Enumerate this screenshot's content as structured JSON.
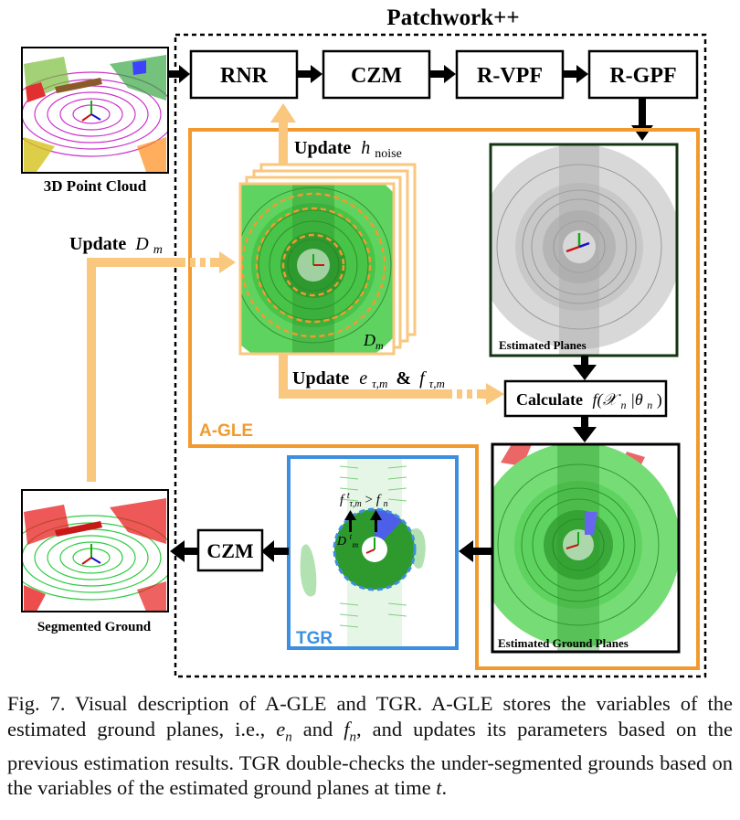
{
  "title": "Patchwork++",
  "blocks": {
    "rnr": "RNR",
    "czm_top": "CZM",
    "rvpf": "R-VPF",
    "rgpf": "R-GPF",
    "czm_bottom": "CZM"
  },
  "labels": {
    "point_cloud": "3D Point Cloud",
    "segmented_ground": "Segmented Ground",
    "update_noise_word": "Update",
    "update_noise_math": "h",
    "update_noise_sub": "noise",
    "update_dm_word": "Update",
    "update_dm_math": "D",
    "update_dm_sub": "m",
    "update_ef_word": "Update",
    "update_ef_e": "e",
    "update_ef_amp": "&",
    "update_ef_f": "f",
    "update_ef_sub": "τ,m",
    "stack_dm": "D",
    "stack_dm_sub": "m",
    "estimated_planes": "Estimated Planes",
    "calculate_word": "Calculate",
    "calculate_math": "f(𝒳",
    "calculate_sub": "n",
    "calculate_rest": "|θ",
    "calculate_sub2": "n",
    "calculate_end": ")",
    "estimated_ground_planes": "Estimated Ground Planes",
    "agle": "A-GLE",
    "tgr": "TGR",
    "tgr_f_left": "f",
    "tgr_f_sup": "t",
    "tgr_f_sub": "τ,m",
    "tgr_gt": ">",
    "tgr_f_right": "f",
    "tgr_f_right_sub": "n",
    "tgr_dm": "D",
    "tgr_dm_sup": "t",
    "tgr_dm_sub": "m"
  },
  "colors": {
    "orange": "#f29a2e",
    "orange_light": "#f9c77e",
    "blue": "#3c8fe0",
    "green": "#5fd35f",
    "dark_green": "#1f7a1f",
    "red": "#e84c4c"
  },
  "caption": "Fig. 7. Visual description of A-GLE and TGR. A-GLE stores the variables of the estimated ground planes, i.e., e_n and f_n, and updates its parameters based on the previous estimation results. TGR double-checks the under-segmented grounds based on the variables of the estimated ground planes at time t.",
  "caption_parts": {
    "p1": "Fig. 7. Visual description of A-GLE and TGR. A-GLE stores the variables of the estimated ground planes, i.e., ",
    "e": "e",
    "e_sub": "n",
    "and": " and ",
    "f": "f",
    "f_sub": "n",
    "p2": ", and updates its parameters based on the previous estimation results. TGR double-checks the under-segmented grounds based on the variables of the estimated ground planes at time ",
    "t": "t",
    "p3": "."
  }
}
